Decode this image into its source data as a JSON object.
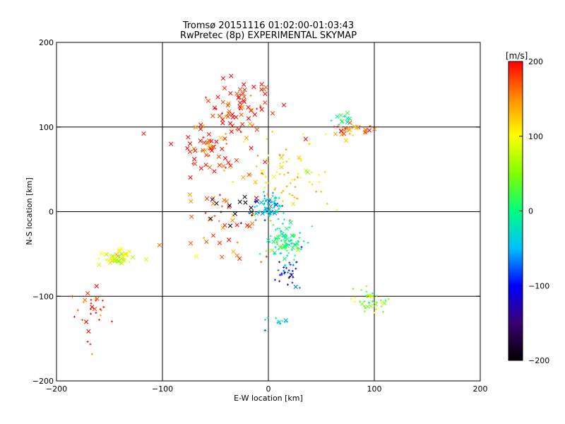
{
  "chart_data": {
    "type": "scatter",
    "title": "Tromsø 20151116 01:02:00-01:03:43",
    "subtitle": "RwPretec (8p) EXPERIMENTAL SKYMAP",
    "xlabel": "E-W location [km]",
    "ylabel": "N-S location [km]",
    "xlim": [
      -200,
      200
    ],
    "ylim": [
      -200,
      200
    ],
    "xticks": [
      -200,
      -100,
      0,
      100,
      200
    ],
    "yticks": [
      -200,
      -100,
      0,
      100,
      200
    ],
    "grid": true,
    "colorbar": {
      "label": "[m/s]",
      "range": [
        -200,
        200
      ],
      "ticks": [
        200,
        100,
        0,
        -100,
        -200
      ],
      "colors": [
        "#000000",
        "#3a0070",
        "#0000ff",
        "#00c0ff",
        "#00ff80",
        "#7fff00",
        "#ffff00",
        "#ff9000",
        "#ff0000"
      ]
    },
    "marker_types": [
      "x",
      "+"
    ],
    "clusters": [
      {
        "center": [
          -25,
          125
        ],
        "spread": [
          25,
          25
        ],
        "count": 70,
        "velocity": 190,
        "marker": "x"
      },
      {
        "center": [
          -55,
          75
        ],
        "spread": [
          30,
          25
        ],
        "count": 60,
        "velocity": 185,
        "marker": "x"
      },
      {
        "center": [
          80,
          95
        ],
        "spread": [
          22,
          10
        ],
        "count": 30,
        "velocity": 170,
        "marker": "x"
      },
      {
        "center": [
          70,
          110
        ],
        "spread": [
          8,
          5
        ],
        "count": 12,
        "velocity": -20,
        "marker": "x"
      },
      {
        "center": [
          -143,
          -55
        ],
        "spread": [
          14,
          7
        ],
        "count": 45,
        "velocity": 90,
        "marker": "x"
      },
      {
        "center": [
          0,
          5
        ],
        "spread": [
          12,
          12
        ],
        "count": 70,
        "velocity": -50,
        "marker": "+"
      },
      {
        "center": [
          15,
          -35
        ],
        "spread": [
          18,
          20
        ],
        "count": 110,
        "velocity": 0,
        "marker": "+"
      },
      {
        "center": [
          20,
          -70
        ],
        "spread": [
          12,
          12
        ],
        "count": 30,
        "velocity": -100,
        "marker": "+"
      },
      {
        "center": [
          95,
          -105
        ],
        "spread": [
          15,
          12
        ],
        "count": 40,
        "velocity": 50,
        "marker": "+"
      },
      {
        "center": [
          -165,
          -120
        ],
        "spread": [
          15,
          25
        ],
        "count": 30,
        "velocity": 195,
        "marker": "+"
      },
      {
        "center": [
          15,
          40
        ],
        "spread": [
          40,
          40
        ],
        "count": 80,
        "velocity": 120,
        "marker": "+"
      },
      {
        "center": [
          -40,
          -20
        ],
        "spread": [
          40,
          40
        ],
        "count": 40,
        "velocity": 170,
        "marker": "x"
      },
      {
        "center": [
          10,
          -130
        ],
        "spread": [
          10,
          8
        ],
        "count": 12,
        "velocity": -40,
        "marker": "+"
      },
      {
        "center": [
          -30,
          0
        ],
        "spread": [
          25,
          20
        ],
        "count": 15,
        "velocity": -190,
        "marker": "x"
      }
    ]
  }
}
